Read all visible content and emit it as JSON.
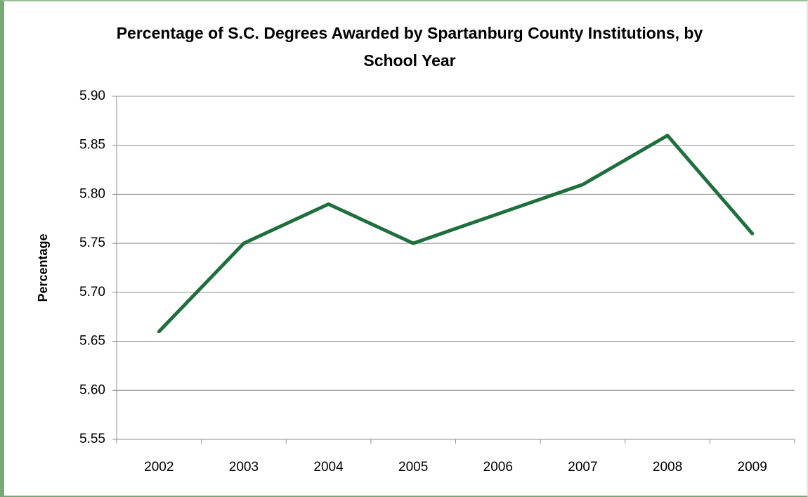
{
  "chart_data": {
    "type": "line",
    "title": "Percentage of S.C. Degrees Awarded by Spartanburg County Institutions, by School Year",
    "y_label": "Percentage",
    "categories": [
      "2002",
      "2003",
      "2004",
      "2005",
      "2006",
      "2007",
      "2008",
      "2009"
    ],
    "series": [
      {
        "name": "Percentage",
        "color": "#1f6e3d",
        "values": [
          5.66,
          5.75,
          5.79,
          5.75,
          5.78,
          5.81,
          5.86,
          5.76
        ]
      }
    ],
    "ylim": [
      5.55,
      5.9
    ],
    "yticks": [
      5.55,
      {
        "value": 5.6,
        "label": "5.60"
      },
      5.65,
      {
        "value": 5.7,
        "label": "5.70"
      },
      5.75,
      {
        "value": 5.8,
        "label": "5.80"
      },
      5.85,
      {
        "value": 5.9,
        "label": "5.90"
      }
    ],
    "grid": true
  }
}
